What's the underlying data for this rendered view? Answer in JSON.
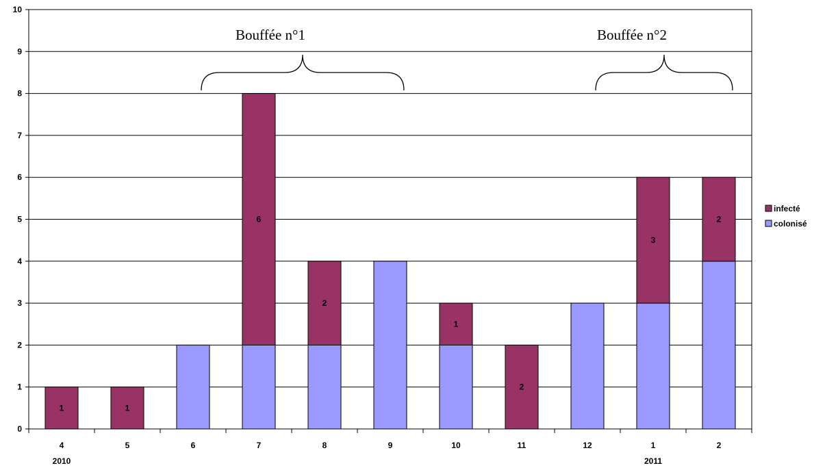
{
  "chart_data": {
    "type": "bar",
    "stacked": true,
    "categories": [
      "4",
      "5",
      "6",
      "7",
      "8",
      "9",
      "10",
      "11",
      "12",
      "1",
      "2"
    ],
    "year_labels": [
      "2010",
      "",
      "",
      "",
      "",
      "",
      "",
      "",
      "",
      "2011",
      ""
    ],
    "series": [
      {
        "name": "colonisé",
        "color": "#9999ff",
        "values": [
          0,
          0,
          2,
          2,
          2,
          4,
          2,
          0,
          3,
          3,
          4
        ]
      },
      {
        "name": "infecté",
        "color": "#993366",
        "values": [
          1,
          1,
          0,
          6,
          2,
          0,
          1,
          2,
          0,
          3,
          2
        ]
      }
    ],
    "data_labels": {
      "infecté": [
        "1",
        "1",
        "",
        "6",
        "2",
        "",
        "1",
        "2",
        "",
        "3",
        "2"
      ]
    },
    "ylim": [
      0,
      10
    ],
    "yticks": [
      "0",
      "1",
      "2",
      "3",
      "4",
      "5",
      "6",
      "7",
      "8",
      "9",
      "10"
    ],
    "grid": true,
    "legend_position": "right",
    "legend_order": [
      "infecté",
      "colonisé"
    ],
    "annotations": [
      {
        "text": "Bouffée n°1",
        "from_category": "6",
        "to_category": "9"
      },
      {
        "text": "Bouffée n°2",
        "from_category": "12",
        "to_category": "2"
      }
    ],
    "title": "",
    "xlabel": "",
    "ylabel": ""
  }
}
